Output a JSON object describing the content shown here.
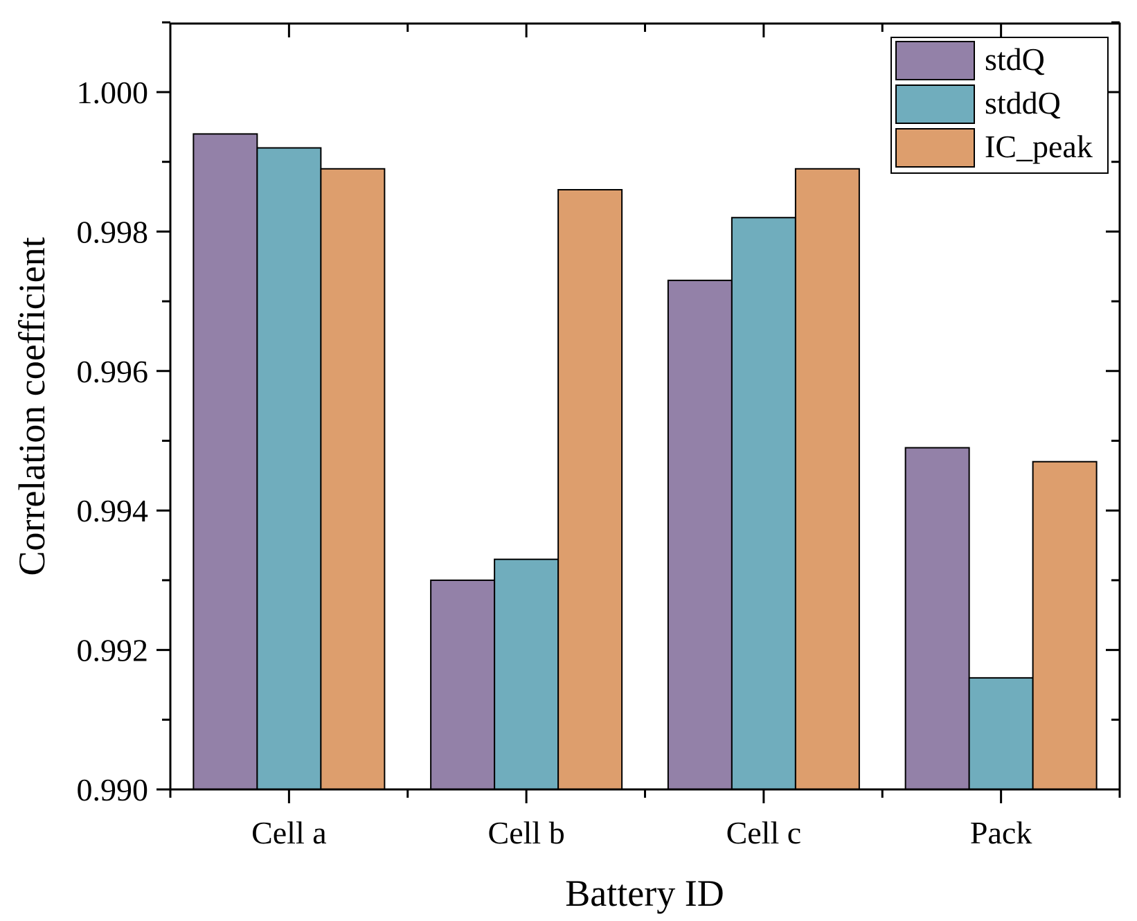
{
  "chart_data": {
    "type": "bar",
    "title": "",
    "xlabel": "Battery ID",
    "ylabel": "Correlation coefficient",
    "categories": [
      "Cell a",
      "Cell b",
      "Cell c",
      "Pack"
    ],
    "series": [
      {
        "name": "stdQ",
        "color": "#9381a8",
        "values": [
          0.9994,
          0.993,
          0.9973,
          0.9949
        ]
      },
      {
        "name": "stddQ",
        "color": "#70adbd",
        "values": [
          0.9992,
          0.9933,
          0.9982,
          0.9916
        ]
      },
      {
        "name": "IC_peak",
        "color": "#dd9e6d",
        "values": [
          0.9989,
          0.9986,
          0.9989,
          0.9947
        ]
      }
    ],
    "ylim": [
      0.99,
      1.001
    ],
    "yticks": [
      0.99,
      0.992,
      0.994,
      0.996,
      0.998,
      1.0
    ],
    "ytick_labels": [
      "0.990",
      "0.992",
      "0.994",
      "0.996",
      "0.998",
      "1.000"
    ],
    "grid": false,
    "legend": "top-right"
  }
}
